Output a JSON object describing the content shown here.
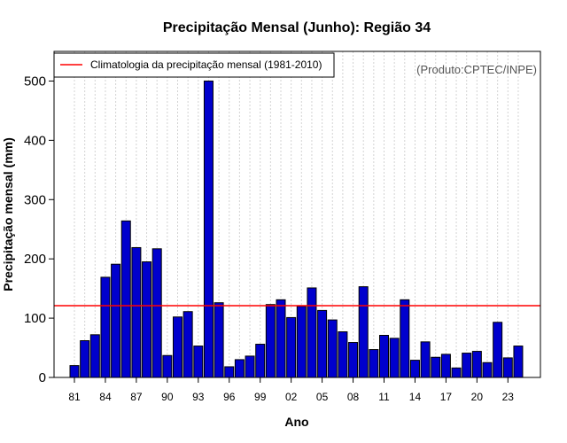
{
  "chart_data": {
    "type": "bar",
    "title": "Precipitação Mensal (Junho): Região 34",
    "xlabel": "Ano",
    "ylabel": "Precipitação mensal (mm)",
    "credit": "(Produto:CPTEC/INPE)",
    "ylim": [
      0,
      550
    ],
    "yticks": [
      0,
      100,
      200,
      300,
      400,
      500
    ],
    "xtick_labels": [
      "81",
      "84",
      "87",
      "90",
      "93",
      "96",
      "99",
      "02",
      "05",
      "08",
      "11",
      "14",
      "17",
      "20",
      "23"
    ],
    "years": [
      1981,
      1982,
      1983,
      1984,
      1985,
      1986,
      1987,
      1988,
      1989,
      1990,
      1991,
      1992,
      1993,
      1994,
      1995,
      1996,
      1997,
      1998,
      1999,
      2000,
      2001,
      2002,
      2003,
      2004,
      2005,
      2006,
      2007,
      2008,
      2009,
      2010,
      2011,
      2012,
      2013,
      2014,
      2015,
      2016,
      2017,
      2018,
      2019,
      2020,
      2021,
      2022,
      2023,
      2024
    ],
    "values": [
      20,
      62,
      72,
      169,
      191,
      264,
      219,
      195,
      217,
      37,
      102,
      111,
      53,
      500,
      126,
      18,
      30,
      36,
      56,
      123,
      131,
      101,
      120,
      151,
      113,
      97,
      77,
      59,
      153,
      47,
      71,
      66,
      131,
      29,
      60,
      34,
      39,
      16,
      41,
      44,
      25,
      93,
      33,
      53
    ],
    "climatology": 121,
    "legend": {
      "label": "Climatologia da precipitação mensal (1981-2010)",
      "position": "top-left"
    },
    "grid": "vertical-dashed",
    "colors": {
      "bar_fill": "#0000cd",
      "bar_stroke": "#000000",
      "climatology_line": "#ff0000",
      "grid": "#d3d3d3"
    }
  }
}
